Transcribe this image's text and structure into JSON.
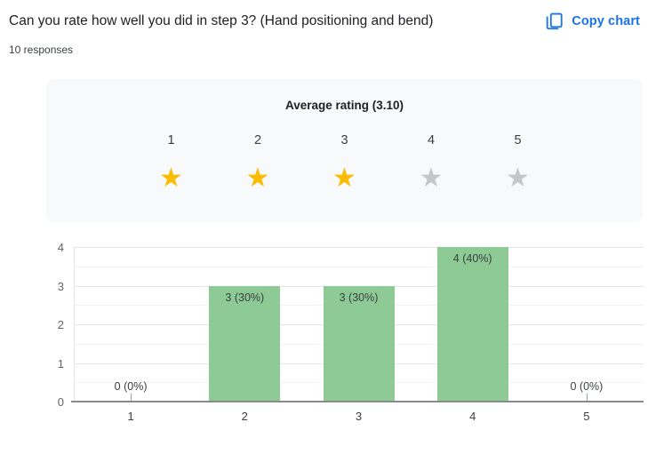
{
  "header": {
    "title": "Can you rate how well you did in step 3? (Hand positioning and bend)",
    "responses_count": "10 responses",
    "copy_chart_label": "Copy chart"
  },
  "colors": {
    "accent_blue": "#1a73e8",
    "bar_green": "#8dca95",
    "star_gold": "#fbbc04",
    "star_gray": "#c6c6c6",
    "panel_bg": "#f8f9fa"
  },
  "rating_summary": {
    "title": "Average rating (3.10)",
    "average": 3.1,
    "scale": [
      "1",
      "2",
      "3",
      "4",
      "5"
    ],
    "filled_stars": 3,
    "total_stars": 5
  },
  "chart_data": {
    "type": "bar",
    "categories": [
      "1",
      "2",
      "3",
      "4",
      "5"
    ],
    "values": [
      0,
      3,
      3,
      4,
      0
    ],
    "bar_labels": [
      "0 (0%)",
      "3 (30%)",
      "3 (30%)",
      "4 (40%)",
      "0 (0%)"
    ],
    "title": "",
    "xlabel": "",
    "ylabel": "",
    "yticks": [
      0,
      1,
      2,
      3,
      4
    ],
    "ylim": [
      0,
      4
    ],
    "grid": true,
    "legend": false,
    "bar_color": "#8dca95"
  }
}
